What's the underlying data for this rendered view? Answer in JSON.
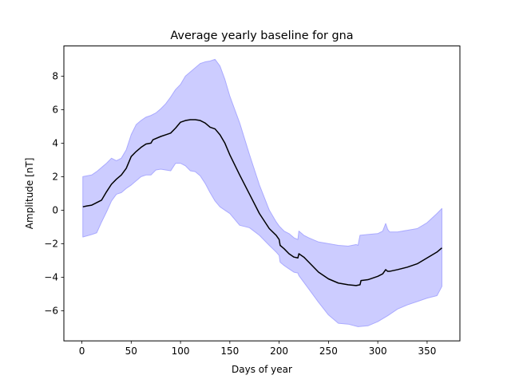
{
  "chart_data": {
    "type": "area",
    "title": "Average yearly baseline for gna",
    "xlabel": "Days of year",
    "ylabel": "Amplitude [nT]",
    "xlim": [
      -18.25,
      383.25
    ],
    "ylim": [
      -7.8,
      9.8
    ],
    "xticks": [
      0,
      50,
      100,
      150,
      200,
      250,
      300,
      350
    ],
    "yticks": [
      -6,
      -4,
      -2,
      0,
      2,
      4,
      6,
      8
    ],
    "grid": false,
    "colors": {
      "band_fill": "#ccccff",
      "band_edge": "#aaaaff",
      "line": "#000000"
    },
    "series": [
      {
        "role": "mean",
        "x": [
          1,
          5,
          10,
          15,
          20,
          25,
          30,
          35,
          40,
          45,
          50,
          55,
          60,
          65,
          70,
          72,
          80,
          85,
          90,
          95,
          100,
          105,
          110,
          115,
          120,
          125,
          130,
          135,
          140,
          145,
          150,
          160,
          170,
          180,
          190,
          197,
          200,
          201,
          205,
          210,
          215,
          219,
          220,
          225,
          230,
          240,
          250,
          260,
          270,
          278,
          282,
          283,
          290,
          300,
          305,
          308,
          310,
          312,
          320,
          330,
          340,
          350,
          360,
          365
        ],
        "y": [
          0.2,
          0.25,
          0.3,
          0.45,
          0.6,
          1.1,
          1.55,
          1.85,
          2.1,
          2.5,
          3.2,
          3.5,
          3.75,
          3.95,
          4.0,
          4.2,
          4.4,
          4.5,
          4.6,
          4.9,
          5.25,
          5.35,
          5.4,
          5.4,
          5.35,
          5.2,
          4.95,
          4.85,
          4.5,
          4.0,
          3.3,
          2.1,
          0.95,
          -0.2,
          -1.1,
          -1.5,
          -1.75,
          -2.1,
          -2.3,
          -2.6,
          -2.8,
          -2.85,
          -2.6,
          -2.8,
          -3.1,
          -3.7,
          -4.1,
          -4.35,
          -4.45,
          -4.5,
          -4.45,
          -4.2,
          -4.15,
          -3.95,
          -3.8,
          -3.55,
          -3.65,
          -3.65,
          -3.55,
          -3.4,
          -3.2,
          -2.85,
          -2.5,
          -2.25
        ]
      },
      {
        "role": "upper",
        "x": [
          1,
          10,
          15,
          20,
          25,
          30,
          35,
          40,
          45,
          50,
          55,
          60,
          65,
          70,
          75,
          80,
          85,
          90,
          95,
          100,
          105,
          110,
          115,
          120,
          125,
          130,
          135,
          140,
          145,
          150,
          160,
          170,
          180,
          190,
          197,
          200,
          205,
          210,
          215,
          219,
          220,
          225,
          230,
          240,
          250,
          260,
          270,
          278,
          280,
          282,
          290,
          300,
          305,
          308,
          310,
          312,
          320,
          330,
          340,
          350,
          360,
          365
        ],
        "y": [
          2.0,
          2.1,
          2.3,
          2.55,
          2.8,
          3.1,
          2.95,
          3.1,
          3.6,
          4.5,
          5.1,
          5.35,
          5.55,
          5.65,
          5.8,
          6.05,
          6.35,
          6.75,
          7.2,
          7.5,
          8.0,
          8.25,
          8.5,
          8.75,
          8.85,
          8.9,
          9.0,
          8.6,
          7.8,
          6.8,
          5.2,
          3.3,
          1.5,
          0.0,
          -0.7,
          -0.95,
          -1.25,
          -1.4,
          -1.65,
          -1.75,
          -1.25,
          -1.5,
          -1.65,
          -1.9,
          -2.0,
          -2.1,
          -2.15,
          -2.05,
          -2.1,
          -1.5,
          -1.45,
          -1.4,
          -1.25,
          -0.8,
          -1.15,
          -1.3,
          -1.3,
          -1.2,
          -1.1,
          -0.75,
          -0.2,
          0.1
        ]
      },
      {
        "role": "lower",
        "x": [
          1,
          10,
          15,
          20,
          25,
          30,
          35,
          40,
          45,
          50,
          55,
          60,
          65,
          70,
          75,
          80,
          85,
          90,
          95,
          100,
          105,
          110,
          115,
          120,
          125,
          130,
          135,
          140,
          145,
          150,
          160,
          170,
          180,
          190,
          197,
          200,
          201,
          205,
          210,
          215,
          219,
          220,
          225,
          230,
          240,
          250,
          260,
          270,
          280,
          290,
          300,
          310,
          320,
          330,
          340,
          350,
          360,
          365
        ],
        "y": [
          -1.6,
          -1.45,
          -1.35,
          -0.7,
          -0.1,
          0.55,
          0.95,
          1.05,
          1.3,
          1.5,
          1.75,
          2.0,
          2.1,
          2.1,
          2.4,
          2.45,
          2.4,
          2.35,
          2.8,
          2.8,
          2.65,
          2.35,
          2.3,
          2.05,
          1.6,
          1.05,
          0.55,
          0.2,
          0.0,
          -0.2,
          -0.9,
          -1.05,
          -1.5,
          -2.1,
          -2.5,
          -2.7,
          -3.1,
          -3.3,
          -3.5,
          -3.7,
          -3.75,
          -3.9,
          -4.3,
          -4.7,
          -5.5,
          -6.25,
          -6.75,
          -6.8,
          -6.95,
          -6.9,
          -6.65,
          -6.3,
          -5.9,
          -5.65,
          -5.45,
          -5.25,
          -5.1,
          -4.55
        ]
      }
    ]
  }
}
